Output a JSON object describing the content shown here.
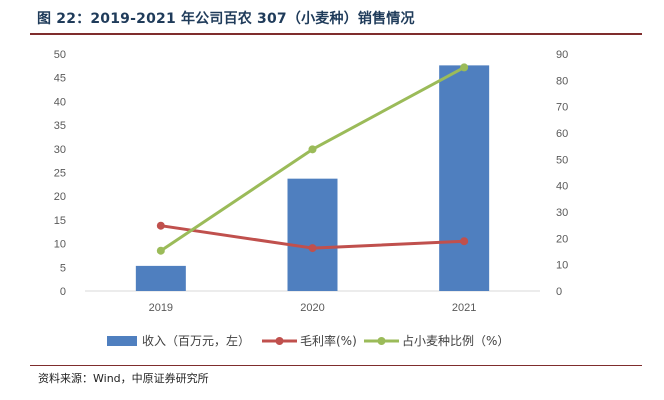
{
  "header": {
    "title": "图 22：2019-2021 年公司百农 307（小麦种）销售情况"
  },
  "footer": {
    "source": "资料来源：Wind，中原证券研究所"
  },
  "chart_data": {
    "type": "bar+line",
    "categories": [
      "2019",
      "2020",
      "2021"
    ],
    "series": [
      {
        "name": "收入（百万元，左）",
        "kind": "bar",
        "axis": "left",
        "color": "#4f7fbf",
        "values": [
          5.3,
          23.7,
          47.6
        ]
      },
      {
        "name": "毛利率(%)",
        "kind": "line",
        "axis": "right",
        "color": "#c0504d",
        "values": [
          24.8,
          16.3,
          18.9
        ]
      },
      {
        "name": "占小麦种比例（%）",
        "kind": "line",
        "axis": "right",
        "color": "#9bbb59",
        "values": [
          15.3,
          53.8,
          84.9
        ]
      }
    ],
    "left_axis": {
      "min": 0,
      "max": 50,
      "step": 5,
      "ticks": [
        "0",
        "5",
        "10",
        "15",
        "20",
        "25",
        "30",
        "35",
        "40",
        "45",
        "50"
      ]
    },
    "right_axis": {
      "min": 0,
      "max": 90,
      "step": 10,
      "ticks": [
        "0",
        "10",
        "20",
        "30",
        "40",
        "50",
        "60",
        "70",
        "80",
        "90"
      ]
    },
    "legend_position": "bottom",
    "axis_line_color": "#d9d9d9"
  }
}
